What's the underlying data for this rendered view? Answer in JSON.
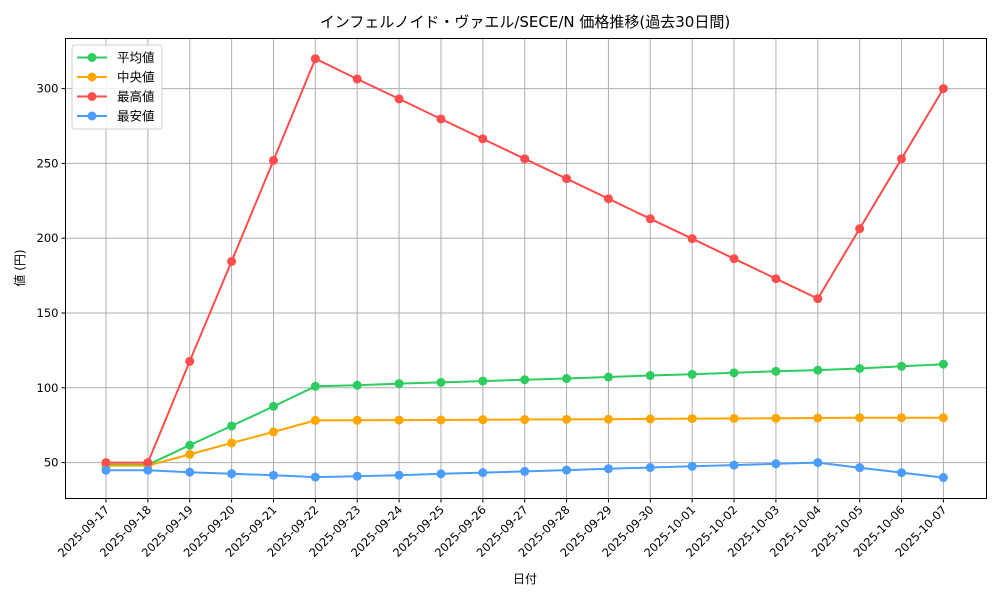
{
  "chart_data": {
    "type": "line",
    "title": "インフェルノイド・ヴァエル/SECE/N 価格推移(過去30日間)",
    "xlabel": "日付",
    "ylabel": "値 (円)",
    "ylim": [
      26,
      333.5
    ],
    "yticks": [
      50,
      100,
      150,
      200,
      250,
      300
    ],
    "grid": true,
    "legend_position": "upper left",
    "x": [
      "2025-09-17",
      "2025-09-18",
      "2025-09-19",
      "2025-09-20",
      "2025-09-21",
      "2025-09-22",
      "2025-09-23",
      "2025-09-24",
      "2025-09-25",
      "2025-09-26",
      "2025-09-27",
      "2025-09-28",
      "2025-09-29",
      "2025-09-30",
      "2025-10-01",
      "2025-10-02",
      "2025-10-03",
      "2025-10-04",
      "2025-10-05",
      "2025-10-06",
      "2025-10-07"
    ],
    "series": [
      {
        "name": "平均値",
        "color": "#2ecc5f",
        "values": [
          48.5,
          48.5,
          61.6,
          74.5,
          87.6,
          101.0,
          101.7,
          102.8,
          103.6,
          104.5,
          105.4,
          106.2,
          107.2,
          108.2,
          109.0,
          110.0,
          111.0,
          111.8,
          112.9,
          114.4,
          115.8
        ]
      },
      {
        "name": "中央値",
        "color": "#ffa500",
        "values": [
          48.0,
          48.0,
          55.5,
          63.1,
          70.5,
          78.2,
          78.3,
          78.4,
          78.5,
          78.7,
          78.8,
          78.9,
          79.0,
          79.2,
          79.4,
          79.5,
          79.6,
          79.8,
          80.0,
          80.0,
          80.0
        ]
      },
      {
        "name": "最高値",
        "color": "#ff4c4c",
        "values": [
          50.0,
          50.0,
          117.7,
          184.5,
          252.0,
          320.0,
          306.4,
          293.1,
          279.7,
          266.4,
          253.1,
          239.8,
          226.4,
          213.0,
          199.7,
          186.3,
          172.9,
          159.6,
          206.4,
          253.1,
          300.0
        ]
      },
      {
        "name": "最安値",
        "color": "#4a9cff",
        "values": [
          44.9,
          44.9,
          43.6,
          42.6,
          41.5,
          40.3,
          40.9,
          41.6,
          42.5,
          43.3,
          44.1,
          45.0,
          45.9,
          46.7,
          47.5,
          48.3,
          49.2,
          50.0,
          46.6,
          43.3,
          40.0
        ]
      }
    ]
  }
}
